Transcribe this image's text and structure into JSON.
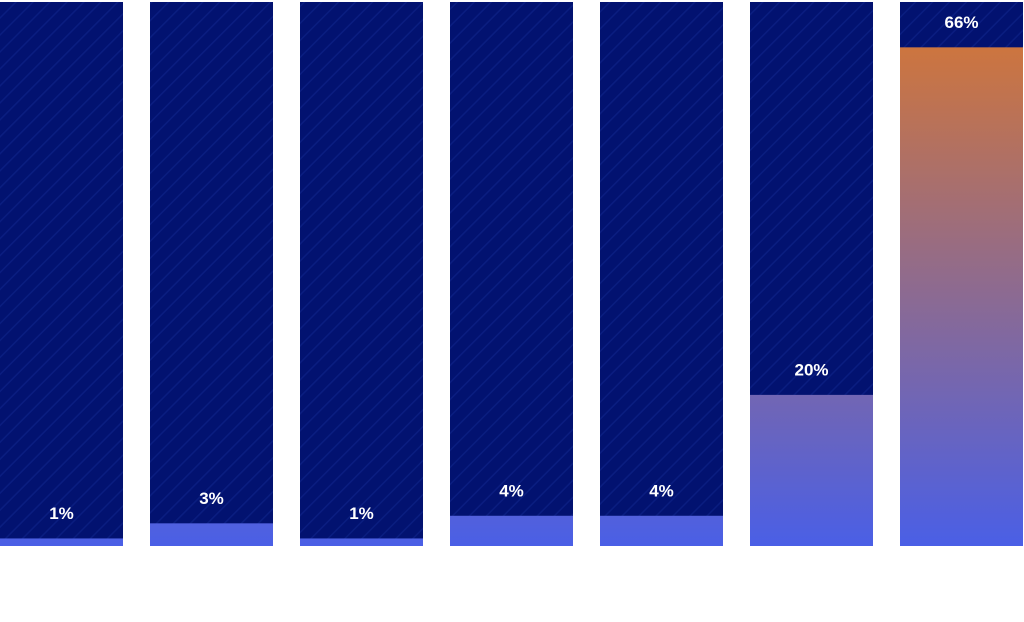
{
  "chart_data": {
    "type": "bar",
    "categories": [
      null,
      null,
      null,
      null,
      null,
      null,
      null
    ],
    "values": [
      1,
      3,
      1,
      4,
      4,
      20,
      66
    ],
    "value_labels": [
      "1%",
      "3%",
      "1%",
      "4%",
      "4%",
      "20%",
      "66%"
    ],
    "color": "#4a5fe6",
    "top_color": "#cc7540",
    "track_color": "#021270",
    "ylim": [
      0,
      72
    ]
  }
}
